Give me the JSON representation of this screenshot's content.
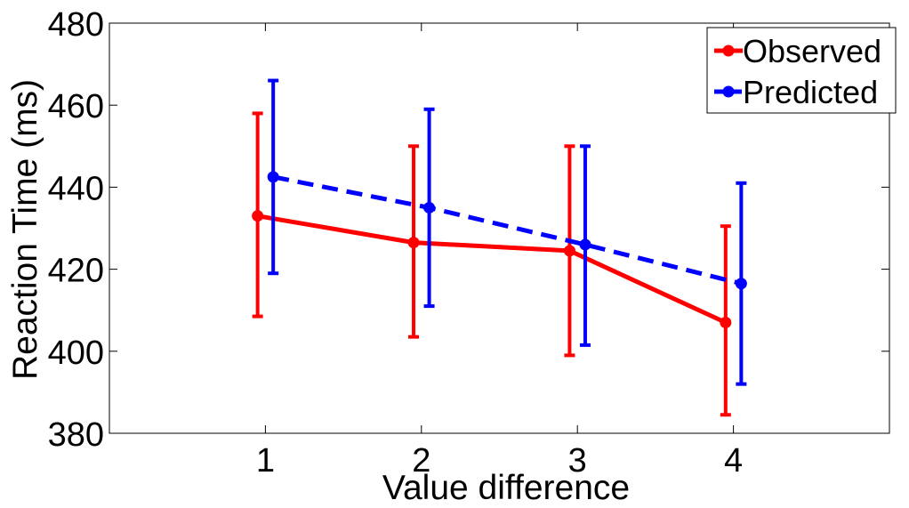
{
  "chart_data": {
    "type": "line",
    "title": "",
    "xlabel": "Value difference",
    "ylabel": "Reaction Time (ms)",
    "xlim": [
      0,
      5
    ],
    "ylim": [
      380,
      480
    ],
    "xticks": [
      "1",
      "2",
      "3",
      "4"
    ],
    "yticks": [
      "380",
      "400",
      "420",
      "440",
      "460",
      "480"
    ],
    "grid": false,
    "legend_position": "top-right",
    "series": [
      {
        "name": "Observed",
        "color": "#ff0000",
        "line_style": "solid",
        "x": [
          1,
          2,
          3,
          4
        ],
        "y": [
          433,
          426.5,
          424.5,
          407
        ],
        "error_low": [
          408.5,
          403.5,
          399,
          384.5
        ],
        "error_high": [
          458,
          450,
          450,
          430.5
        ]
      },
      {
        "name": "Predicted",
        "color": "#0000ff",
        "line_style": "dashed",
        "x": [
          1,
          2,
          3,
          4
        ],
        "y": [
          442.5,
          435,
          426,
          416.5
        ],
        "error_low": [
          419,
          411,
          401.5,
          392
        ],
        "error_high": [
          466,
          459,
          450,
          441
        ]
      }
    ]
  }
}
